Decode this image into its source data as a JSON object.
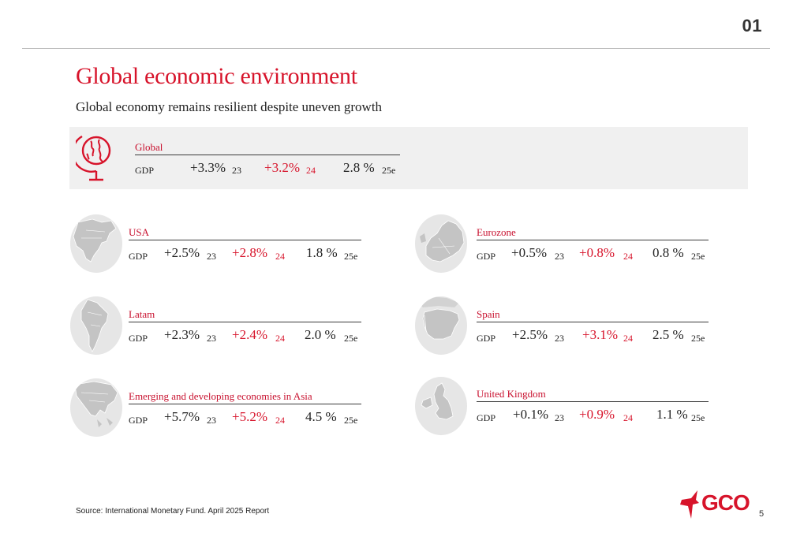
{
  "header": {
    "section_number": "01",
    "title": "Global economic environment",
    "subtitle": "Global economy remains resilient despite uneven growth"
  },
  "global": {
    "name": "Global",
    "label": "GDP",
    "v23": "+3.3%",
    "y23": "23",
    "v24": "+3.2%",
    "y24": "24",
    "v25": "2.8 %",
    "y25": "25e",
    "icon": "globe-icon"
  },
  "regions": {
    "usa": {
      "name": "USA",
      "label": "GDP",
      "v23": "+2.5%",
      "y23": "23",
      "v24": "+2.8%",
      "y24": "24",
      "v25": "1.8 %",
      "y25": "25e",
      "icon": "north-america-map-icon"
    },
    "latam": {
      "name": "Latam",
      "label": "GDP",
      "v23": "+2.3%",
      "y23": "23",
      "v24": "+2.4%",
      "y24": "24",
      "v25": "2.0 %",
      "y25": "25e",
      "icon": "south-america-map-icon"
    },
    "asia": {
      "name": "Emerging and developing economies in Asia",
      "label": "GDP",
      "v23": "+5.7%",
      "y23": "23",
      "v24": "+5.2%",
      "y24": "24",
      "v25": "4.5 %",
      "y25": "25e",
      "icon": "asia-map-icon"
    },
    "eurozone": {
      "name": "Eurozone",
      "label": "GDP",
      "v23": "+0.5%",
      "y23": "23",
      "v24": "+0.8%",
      "y24": "24",
      "v25": "0.8 %",
      "y25": "25e",
      "icon": "europe-map-icon"
    },
    "spain": {
      "name": "Spain",
      "label": "GDP",
      "v23": "+2.5%",
      "y23": "23",
      "v24": "+3.1%",
      "y24": "24",
      "v25": "2.5 %",
      "y25": "25e",
      "icon": "spain-map-icon"
    },
    "uk": {
      "name": "United Kingdom",
      "label": "GDP",
      "v23": "+0.1%",
      "y23": "23",
      "v24": "+0.9%",
      "y24": "24",
      "v25": "1.1 %",
      "y25": "25e",
      "icon": "uk-map-icon"
    }
  },
  "footer": {
    "source": "Source: International Monetary Fund. April 2025 Report",
    "logo_text": "GCO",
    "page_number": "5"
  },
  "colors": {
    "accent": "#d7142b",
    "panel": "#f0f0f0",
    "map_land": "#c4c4c4",
    "map_sea": "#e6e6e6"
  }
}
